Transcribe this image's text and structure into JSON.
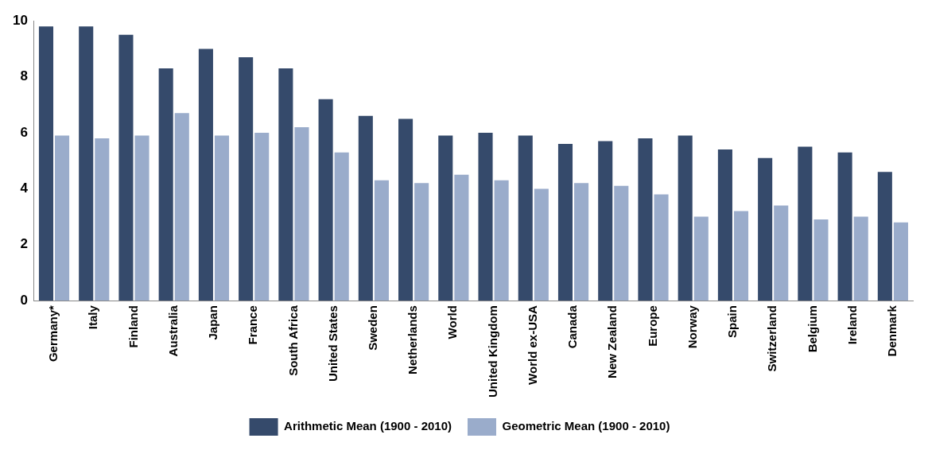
{
  "chart_data": {
    "type": "bar",
    "categories": [
      "Germany*",
      "Italy",
      "Finland",
      "Australia",
      "Japan",
      "France",
      "South Africa",
      "United States",
      "Sweden",
      "Netherlands",
      "World",
      "United Kingdom",
      "World ex-USA",
      "Canada",
      "New Zealand",
      "Europe",
      "Norway",
      "Spain",
      "Switzerland",
      "Belgium",
      "Ireland",
      "Denmark"
    ],
    "series": [
      {
        "name": "Arithmetic Mean (1900 - 2010)",
        "color": "#354a6b",
        "values": [
          9.8,
          9.8,
          9.5,
          8.3,
          9.0,
          8.7,
          8.3,
          7.2,
          6.6,
          6.5,
          5.9,
          6.0,
          5.9,
          5.6,
          5.7,
          5.8,
          5.9,
          5.4,
          5.1,
          5.5,
          5.3,
          4.6
        ]
      },
      {
        "name": "Geometric Mean (1900 - 2010)",
        "color": "#9aaccb",
        "values": [
          5.9,
          5.8,
          5.9,
          6.7,
          5.9,
          6.0,
          6.2,
          5.3,
          4.3,
          4.2,
          4.5,
          4.3,
          4.0,
          4.2,
          4.1,
          3.8,
          3.0,
          3.2,
          3.4,
          2.9,
          3.0,
          2.8
        ]
      }
    ],
    "ylim": [
      0,
      10
    ],
    "yticks": [
      0,
      2,
      4,
      6,
      8,
      10
    ],
    "grid": false,
    "legend": "bottom"
  }
}
